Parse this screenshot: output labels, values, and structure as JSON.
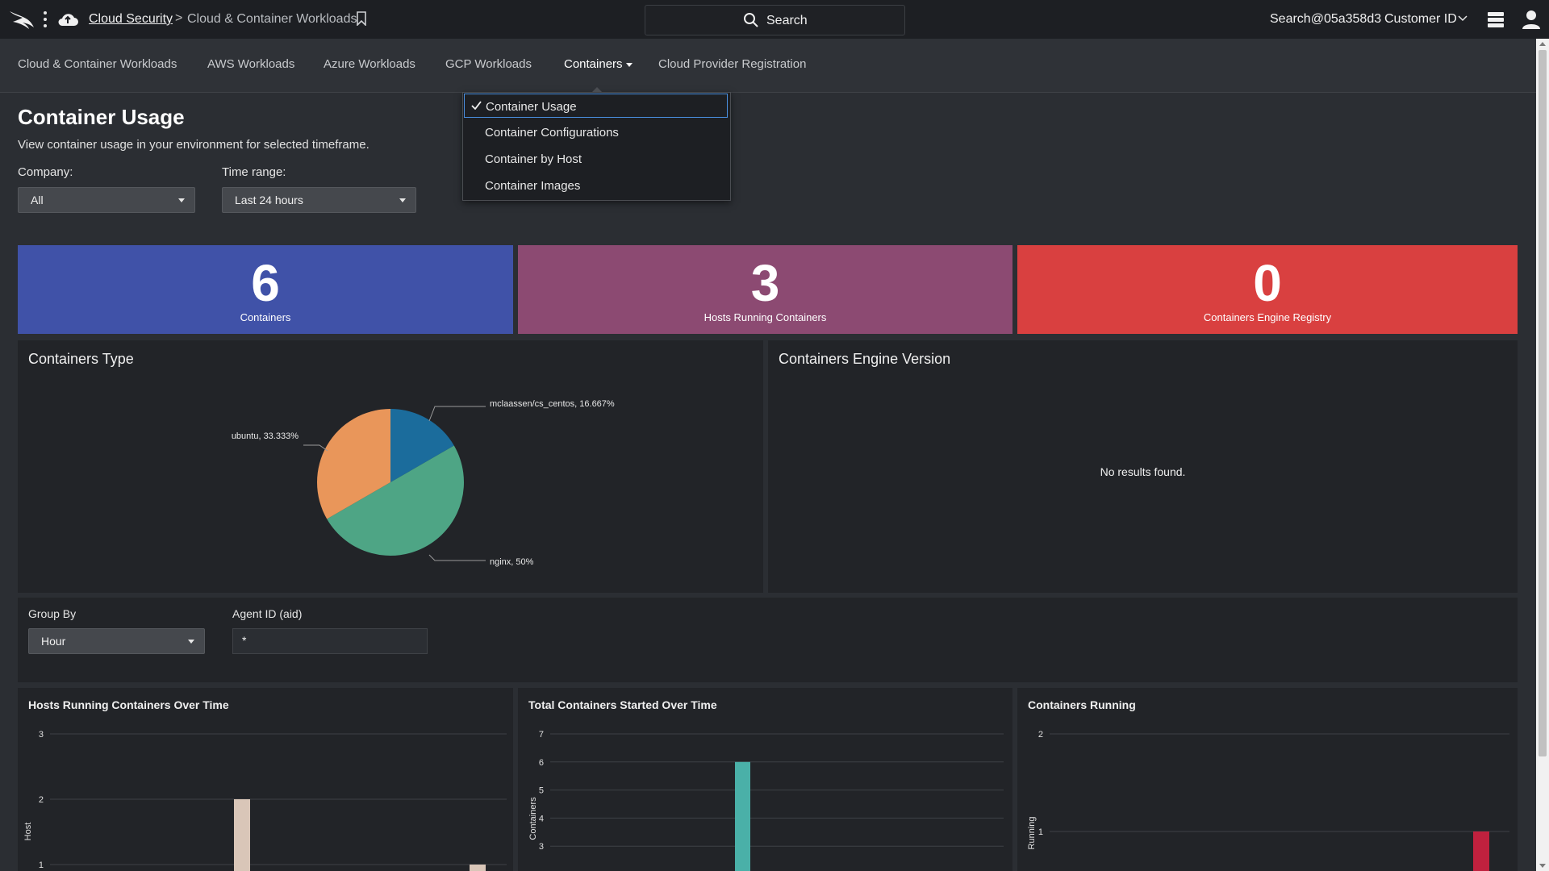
{
  "topbar": {
    "breadcrumb_home": "Cloud Security",
    "breadcrumb_separator": ">",
    "breadcrumb_current": "Cloud & Container Workloads",
    "search_label": "Search",
    "user": "Search@05a358d3",
    "customer_id": "Customer ID",
    "icons": [
      "falcon-logo-icon",
      "more-vertical-icon",
      "cloud-icon",
      "bookmark-icon",
      "search-icon",
      "chevron-down-icon",
      "notifications-icon",
      "user-icon"
    ]
  },
  "nav": {
    "items": [
      {
        "label": "Cloud & Container Workloads"
      },
      {
        "label": "AWS Workloads"
      },
      {
        "label": "Azure Workloads"
      },
      {
        "label": "GCP Workloads"
      },
      {
        "label": "Containers"
      },
      {
        "label": "Cloud Provider Registration"
      }
    ],
    "active": "Containers"
  },
  "dropdown": {
    "items": [
      {
        "label": "Container Usage",
        "selected": true
      },
      {
        "label": "Container Configurations",
        "selected": false
      },
      {
        "label": "Container by Host",
        "selected": false
      },
      {
        "label": "Container Images",
        "selected": false
      }
    ]
  },
  "header": {
    "title": "Container Usage",
    "subtitle": "View container usage in your environment for selected timeframe.",
    "company_label": "Company:",
    "company_value": "All",
    "time_label": "Time range:",
    "time_value": "Last 24 hours"
  },
  "tiles": [
    {
      "value": "6",
      "caption": "Containers",
      "color": "#4052a8"
    },
    {
      "value": "3",
      "caption": "Hosts Running Containers",
      "color": "#8c4a72"
    },
    {
      "value": "0",
      "caption": "Containers Engine Registry",
      "color": "#d94040"
    }
  ],
  "panels": {
    "containers_type_title": "Containers Type",
    "engine_version_title": "Containers Engine Version",
    "no_results": "No results found."
  },
  "filters": {
    "group_by_label": "Group By",
    "group_by_value": "Hour",
    "agent_label": "Agent ID (aid)",
    "agent_value": "*"
  },
  "chart_data": [
    {
      "type": "pie",
      "title": "Containers Type",
      "labels": [
        "mclaassen/cs_centos",
        "nginx",
        "ubuntu"
      ],
      "values": [
        16.667,
        50,
        33.333
      ],
      "slice_labels": [
        "mclaassen/cs_centos, 16.667%",
        "nginx, 50%",
        "ubuntu, 33.333%"
      ],
      "colors": [
        "#1b6c9c",
        "#4ea585",
        "#e9965a"
      ]
    },
    {
      "type": "bar",
      "title": "Hosts Running Containers Over Time",
      "ylabel": "Host",
      "yticks": [
        1,
        2,
        3
      ],
      "ylim": [
        0,
        3
      ],
      "values": [
        2,
        1
      ],
      "color": "#d9c6b8"
    },
    {
      "type": "bar",
      "title": "Total Containers Started Over Time",
      "ylabel": "Containers",
      "yticks": [
        3,
        4,
        5,
        6,
        7
      ],
      "ylim": [
        0,
        7
      ],
      "values": [
        6
      ],
      "color": "#4ab0a8"
    },
    {
      "type": "bar",
      "title": "Containers Running",
      "ylabel": "Running",
      "yticks": [
        1,
        2
      ],
      "ylim": [
        0,
        2
      ],
      "values": [
        1
      ],
      "color": "#c0213e"
    }
  ]
}
